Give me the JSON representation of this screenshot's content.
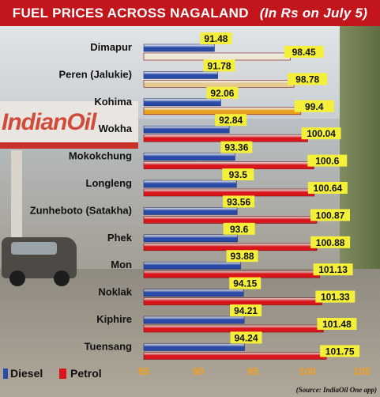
{
  "header": {
    "title": "FUEL PRICES ACROSS NAGALAND",
    "subtitle": "(In Rs on July 5)"
  },
  "source": "(Source: IndiaOil One app)",
  "colors": {
    "diesel": "#2a4aa8",
    "petrol": "#d8161c",
    "petrol_highlight_1": "#ece6d2",
    "petrol_highlight_2": "#e6c98e",
    "petrol_highlight_3": "#e8a020",
    "label_box": "#f4f03a",
    "tick": "#f0a020"
  },
  "chart_data": {
    "type": "bar",
    "orientation": "horizontal",
    "title": "FUEL PRICES ACROSS NAGALAND",
    "subtitle": "(In Rs on July 5)",
    "xlim": [
      85,
      105
    ],
    "xticks": [
      85,
      90,
      95,
      100,
      105
    ],
    "legend_position": "bottom-left",
    "categories": [
      "Dimapur",
      "Peren (Jalukie)",
      "Kohima",
      "Wokha",
      "Mokokchung",
      "Longleng",
      "Zunheboto (Satakha)",
      "Phek",
      "Mon",
      "Noklak",
      "Kiphire",
      "Tuensang"
    ],
    "series": [
      {
        "name": "Diesel",
        "values": [
          91.48,
          91.78,
          92.06,
          92.84,
          93.36,
          93.5,
          93.56,
          93.6,
          93.88,
          94.15,
          94.21,
          94.24
        ]
      },
      {
        "name": "Petrol",
        "values": [
          98.45,
          98.78,
          99.4,
          100.04,
          100.6,
          100.64,
          100.87,
          100.88,
          101.13,
          101.33,
          101.48,
          101.75
        ]
      }
    ]
  }
}
